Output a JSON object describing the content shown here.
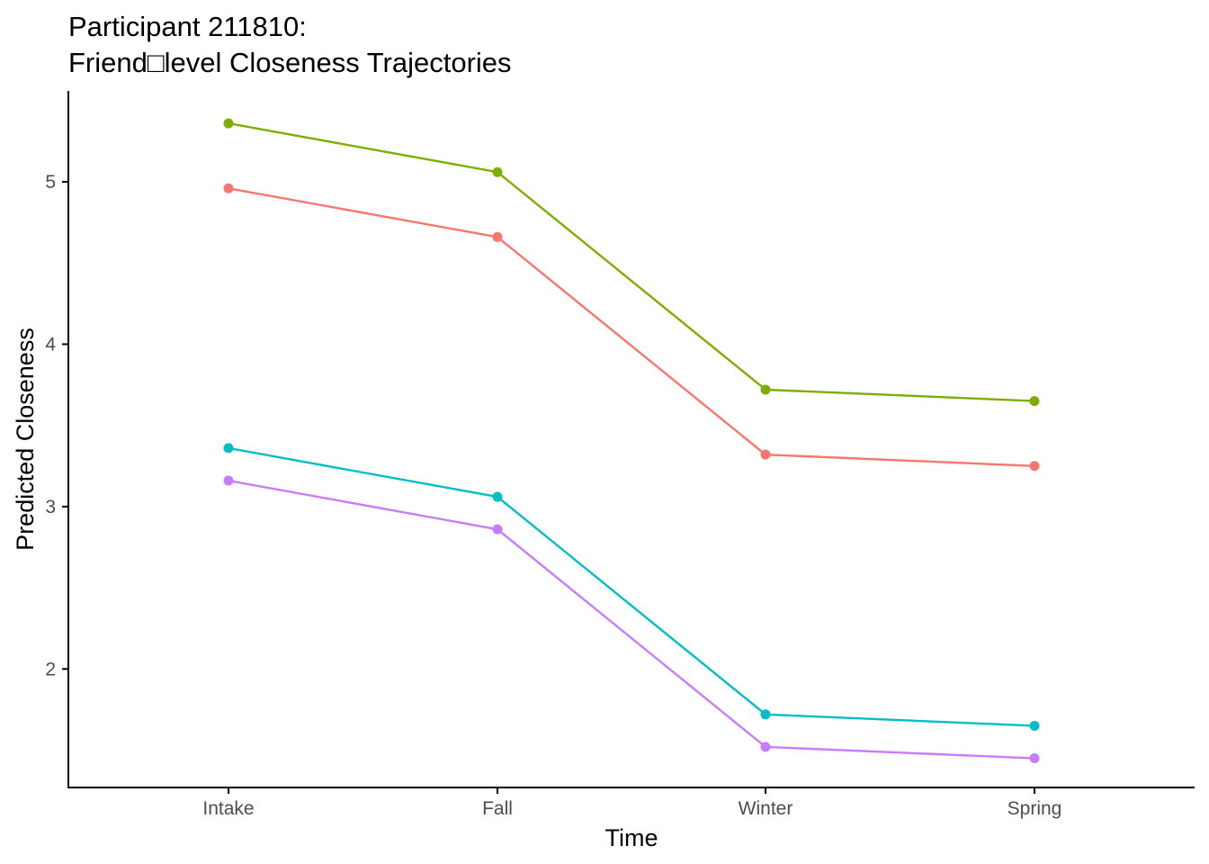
{
  "chart_data": {
    "type": "line",
    "title_line1": "Participant 211810:",
    "title_line2": "Friend□level Closeness Trajectories",
    "xlabel": "Time",
    "ylabel": "Predicted Closeness",
    "categories": [
      "Intake",
      "Fall",
      "Winter",
      "Spring"
    ],
    "ylim": [
      1.27,
      5.56
    ],
    "yticks": [
      "2",
      "3",
      "4",
      "5"
    ],
    "grid": false,
    "legend": "none",
    "series": [
      {
        "color": "#F8766D",
        "values": [
          4.96,
          4.66,
          3.32,
          3.25
        ]
      },
      {
        "color": "#7CAE00",
        "values": [
          5.36,
          5.06,
          3.72,
          3.65
        ]
      },
      {
        "color": "#00BFC4",
        "values": [
          3.36,
          3.06,
          1.72,
          1.65
        ]
      },
      {
        "color": "#C77CFF",
        "values": [
          3.16,
          2.86,
          1.52,
          1.45
        ]
      }
    ]
  }
}
